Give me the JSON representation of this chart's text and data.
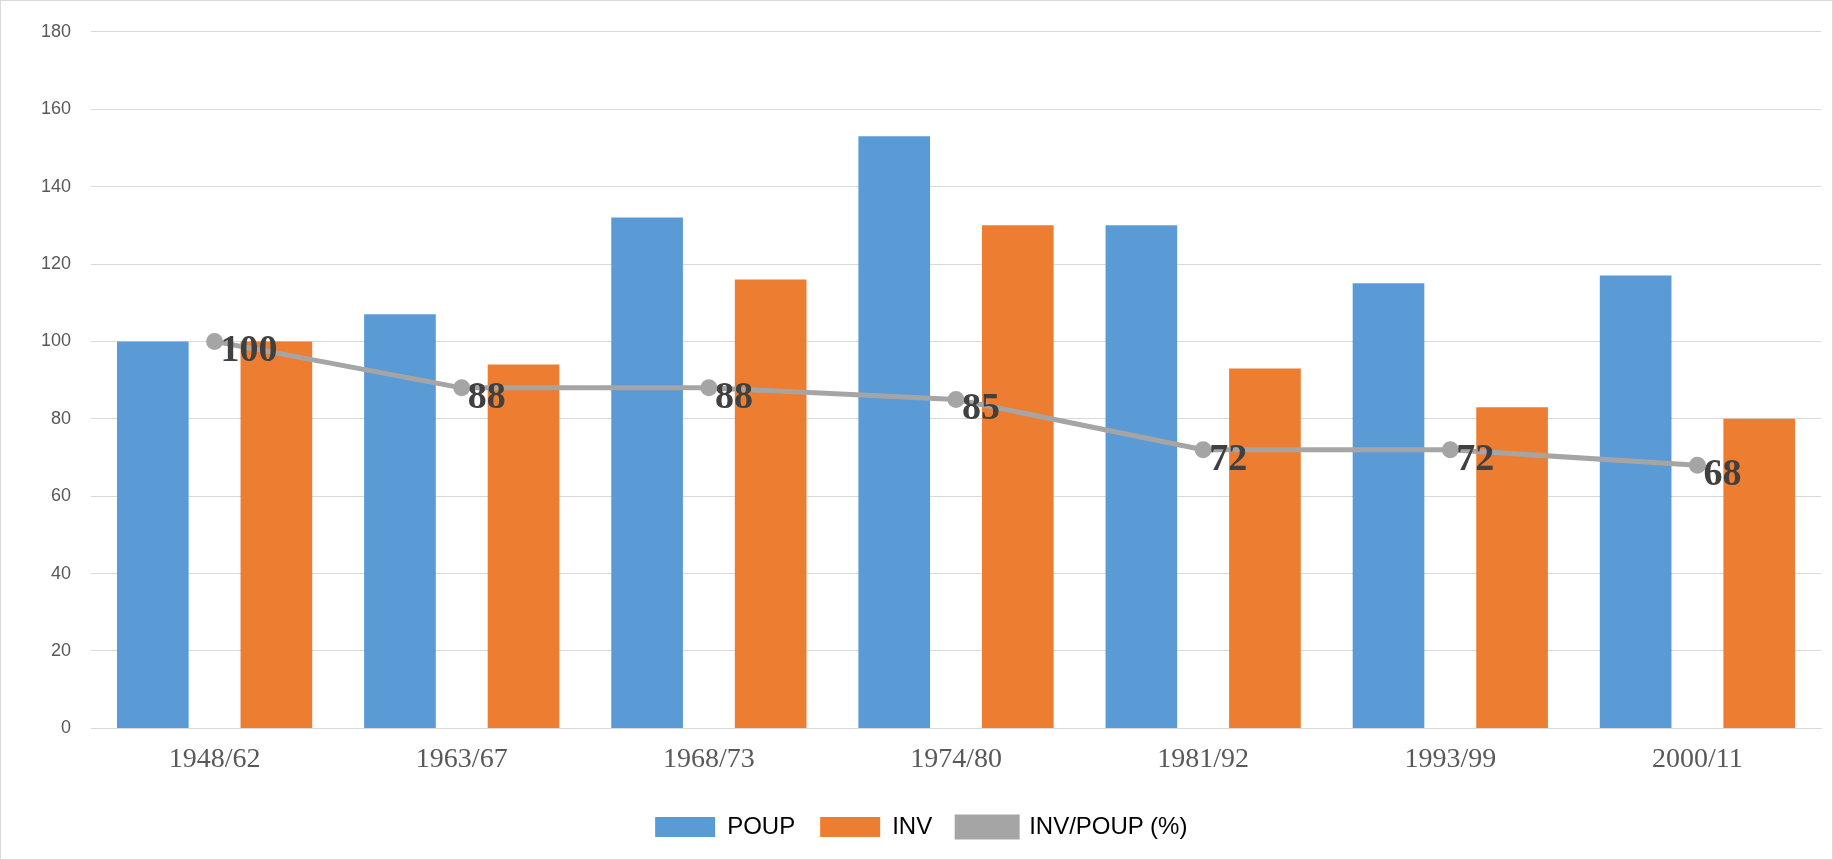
{
  "chart_data": {
    "type": "bar",
    "categories": [
      "1948/62",
      "1963/67",
      "1968/73",
      "1974/80",
      "1981/92",
      "1993/99",
      "2000/11"
    ],
    "series": [
      {
        "name": "POUP",
        "color": "#5b9bd5",
        "values": [
          100,
          107,
          132,
          153,
          130,
          115,
          117
        ]
      },
      {
        "name": "INV",
        "color": "#ed7d31",
        "values": [
          100,
          94,
          116,
          130,
          93,
          83,
          80
        ]
      },
      {
        "name": "INV/POUP (%)",
        "type": "line",
        "color": "#a5a5a5",
        "values": [
          100,
          88,
          88,
          85,
          72,
          72,
          68
        ],
        "value_labels": [
          "100",
          "88",
          "88",
          "85",
          "72",
          "72",
          "68"
        ]
      }
    ],
    "ylim": [
      0,
      180
    ],
    "yticks": [
      0,
      20,
      40,
      60,
      80,
      100,
      120,
      140,
      160,
      180
    ],
    "grid": "y",
    "legend": "bottom",
    "marker": "circle",
    "line_style": "solid"
  }
}
